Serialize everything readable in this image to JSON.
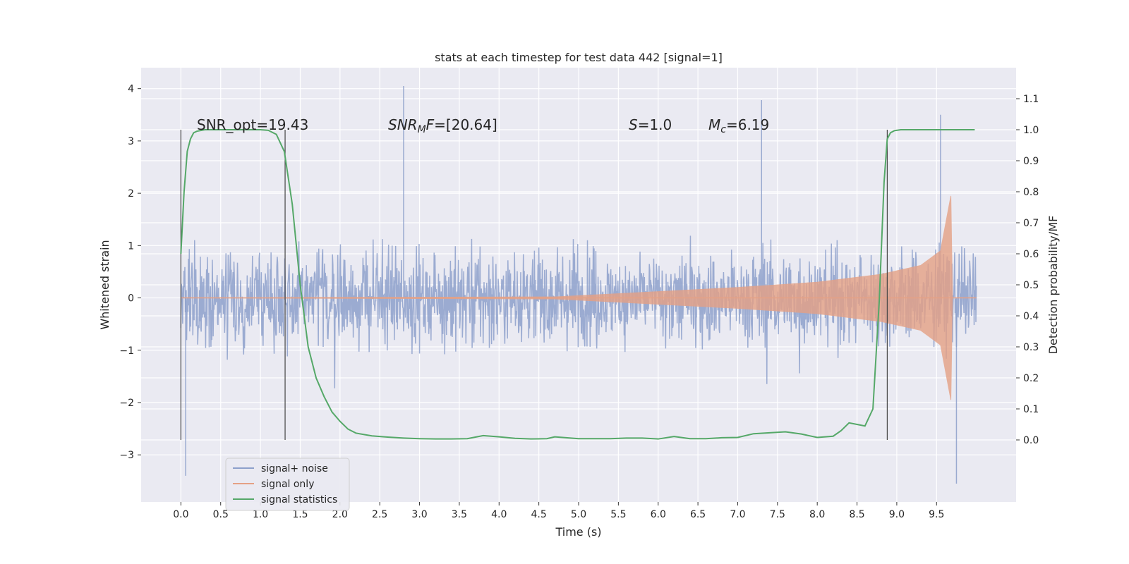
{
  "chart_data": {
    "type": "line",
    "title": "stats at each timestep for test data 442 [signal=1]",
    "xlabel": "Time (s)",
    "ylabel": "Whitened strain",
    "ylabel_right": "Detection probability/MF",
    "xlim": [
      -0.5,
      10.5
    ],
    "ylim": [
      -3.9,
      4.4
    ],
    "ylim_right": [
      -0.2,
      1.2
    ],
    "x_ticks": [
      "0.0",
      "0.5",
      "1.0",
      "1.5",
      "2.0",
      "2.5",
      "3.0",
      "3.5",
      "4.0",
      "4.5",
      "5.0",
      "5.5",
      "6.0",
      "6.5",
      "7.0",
      "7.5",
      "8.0",
      "8.5",
      "9.0",
      "9.5"
    ],
    "x_tick_values": [
      0,
      0.5,
      1,
      1.5,
      2,
      2.5,
      3,
      3.5,
      4,
      4.5,
      5,
      5.5,
      6,
      6.5,
      7,
      7.5,
      8,
      8.5,
      9,
      9.5
    ],
    "y_ticks": [
      "−3",
      "−2",
      "−1",
      "0",
      "1",
      "2",
      "3",
      "4"
    ],
    "y_tick_values": [
      -3,
      -2,
      -1,
      0,
      1,
      2,
      3,
      4
    ],
    "y_right_ticks": [
      "0.0",
      "0.1",
      "0.2",
      "0.3",
      "0.4",
      "0.5",
      "0.6",
      "0.7",
      "0.8",
      "0.9",
      "1.0",
      "1.1"
    ],
    "y_right_tick_values": [
      0,
      0.1,
      0.2,
      0.3,
      0.4,
      0.5,
      0.6,
      0.7,
      0.8,
      0.9,
      1.0,
      1.1
    ],
    "grid": true,
    "legend_position": "lower-left",
    "annotations": {
      "snr_opt": "SNR_opt=19.43",
      "snr_mf_main": "SNR",
      "snr_mf_sub": "M",
      "snr_mf_italic": "F",
      "snr_mf_rest": "=[20.64]",
      "s_italic": "S",
      "s_rest": "=1.0",
      "mc_italic": "M",
      "mc_sub": "c",
      "mc_rest": "=6.19"
    },
    "vertical_markers_x": [
      0.0,
      1.31,
      8.88
    ],
    "series": [
      {
        "name": "signal+ noise",
        "color": "#8da0cb",
        "t_range": [
          0.0,
          10.0
        ],
        "envelope_typical": [
          -1.5,
          1.5
        ],
        "extremes": [
          {
            "x": 2.8,
            "y": 4.05
          },
          {
            "x": 7.3,
            "y": 3.78
          },
          {
            "x": 9.55,
            "y": 3.5
          },
          {
            "x": 0.06,
            "y": -3.4
          },
          {
            "x": 9.75,
            "y": -3.55
          }
        ]
      },
      {
        "name": "signal only",
        "color": "#e5a185",
        "description_points": [
          [
            0,
            0
          ],
          [
            4.7,
            0.02
          ],
          [
            6.0,
            0.12
          ],
          [
            7.0,
            0.2
          ],
          [
            8.0,
            0.3
          ],
          [
            8.8,
            0.45
          ],
          [
            9.3,
            0.62
          ],
          [
            9.55,
            0.9
          ],
          [
            9.68,
            1.95
          ],
          [
            9.7,
            0.0
          ],
          [
            10.0,
            0.0
          ]
        ]
      },
      {
        "name": "signal statistics",
        "color": "#55a868",
        "axis": "right",
        "x": [
          0.0,
          0.04,
          0.08,
          0.12,
          0.16,
          0.2,
          0.3,
          0.4,
          0.6,
          0.8,
          1.0,
          1.1,
          1.2,
          1.3,
          1.4,
          1.5,
          1.6,
          1.7,
          1.8,
          1.9,
          2.0,
          2.1,
          2.2,
          2.4,
          2.6,
          2.8,
          3.0,
          3.2,
          3.4,
          3.6,
          3.8,
          4.0,
          4.2,
          4.4,
          4.6,
          4.7,
          4.8,
          5.0,
          5.2,
          5.4,
          5.6,
          5.8,
          6.0,
          6.2,
          6.4,
          6.6,
          6.8,
          7.0,
          7.2,
          7.4,
          7.6,
          7.8,
          8.0,
          8.2,
          8.3,
          8.4,
          8.5,
          8.6,
          8.7,
          8.78,
          8.84,
          8.88,
          8.92,
          8.97,
          9.05,
          9.2,
          9.5,
          9.8,
          9.98
        ],
        "y": [
          0.6,
          0.8,
          0.93,
          0.97,
          0.99,
          0.995,
          1.0,
          1.0,
          1.0,
          1.0,
          1.0,
          0.998,
          0.985,
          0.93,
          0.76,
          0.5,
          0.3,
          0.2,
          0.14,
          0.09,
          0.06,
          0.035,
          0.022,
          0.013,
          0.009,
          0.006,
          0.004,
          0.003,
          0.003,
          0.004,
          0.014,
          0.01,
          0.005,
          0.003,
          0.004,
          0.01,
          0.008,
          0.004,
          0.004,
          0.004,
          0.006,
          0.006,
          0.003,
          0.011,
          0.004,
          0.004,
          0.007,
          0.008,
          0.02,
          0.023,
          0.026,
          0.019,
          0.008,
          0.012,
          0.03,
          0.055,
          0.05,
          0.045,
          0.1,
          0.45,
          0.83,
          0.97,
          0.99,
          0.997,
          1.0,
          1.0,
          1.0,
          1.0,
          1.0
        ]
      }
    ]
  }
}
